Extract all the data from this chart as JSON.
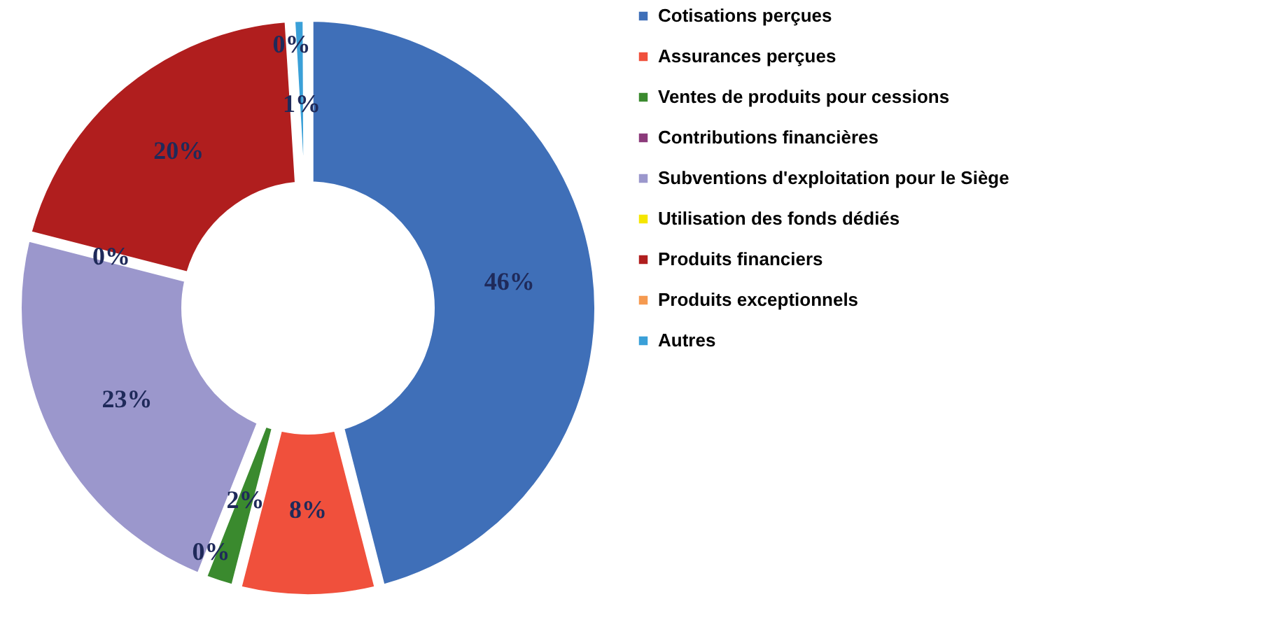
{
  "chart_data": {
    "type": "donut",
    "categories": [
      "Cotisations perçues",
      "Assurances perçues",
      "Ventes de produits pour cessions",
      "Contributions financières",
      "Subventions d'exploitation pour le Siège",
      "Utilisation des fonds dédiés",
      "Produits financiers",
      "Produits exceptionnels",
      "Autres"
    ],
    "values": [
      46,
      8,
      2,
      0,
      23,
      0,
      20,
      0,
      1
    ],
    "value_labels": [
      "46%",
      "8%",
      "2%",
      "0%",
      "23%",
      "0%",
      "20%",
      "0%",
      "1%"
    ],
    "colors": [
      "#3f6fb8",
      "#f0503c",
      "#3a8a2e",
      "#8b3a7a",
      "#9b97cc",
      "#f5e600",
      "#b01e1e",
      "#f59a50",
      "#3aa0d8"
    ],
    "legend": "right"
  }
}
